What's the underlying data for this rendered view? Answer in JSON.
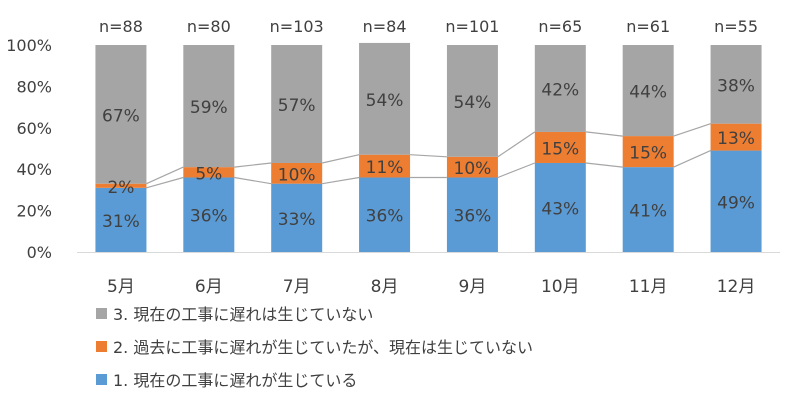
{
  "chart_data": {
    "type": "bar",
    "stacked": true,
    "categories": [
      "5月",
      "6月",
      "7月",
      "8月",
      "9月",
      "10月",
      "11月",
      "12月"
    ],
    "sample_sizes": [
      "n=88",
      "n=80",
      "n=103",
      "n=84",
      "n=101",
      "n=65",
      "n=61",
      "n=55"
    ],
    "series": [
      {
        "name": "1. 現在の工事に遅れが生じている",
        "color": "#5B9BD5",
        "values": [
          31,
          36,
          33,
          36,
          36,
          43,
          41,
          49
        ],
        "labels": [
          "31%",
          "36%",
          "33%",
          "36%",
          "36%",
          "43%",
          "41%",
          "49%"
        ]
      },
      {
        "name": "2. 過去に工事に遅れが生じていたが、現在は生じていない",
        "color": "#ED7D31",
        "values": [
          2,
          5,
          10,
          11,
          10,
          15,
          15,
          13
        ],
        "labels": [
          "2%",
          "5%",
          "10%",
          "11%",
          "10%",
          "15%",
          "15%",
          "13%"
        ]
      },
      {
        "name": "3. 現在の工事に遅れは生じていない",
        "color": "#A5A5A5",
        "values": [
          67,
          59,
          57,
          54,
          54,
          42,
          44,
          38
        ],
        "labels": [
          "67%",
          "59%",
          "57%",
          "54%",
          "54%",
          "42%",
          "44%",
          "38%"
        ]
      }
    ],
    "yticks": [
      "0%",
      "20%",
      "40%",
      "60%",
      "80%",
      "100%"
    ],
    "ylim": [
      0,
      100
    ],
    "grid": false,
    "series_lines": true,
    "legend_position": "bottom-left"
  }
}
